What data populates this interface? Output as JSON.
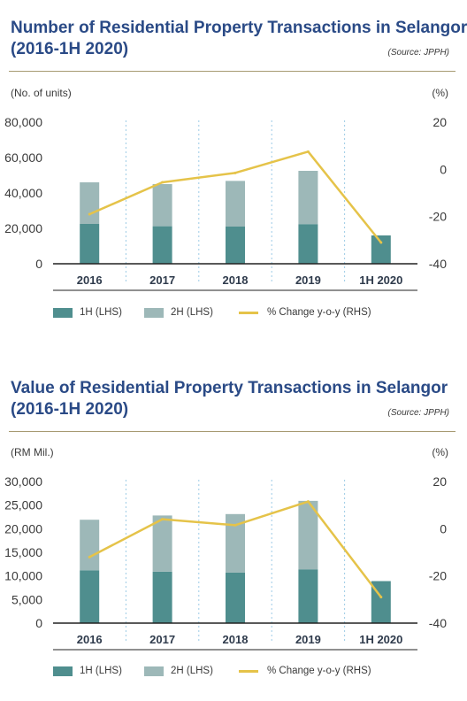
{
  "charts": [
    {
      "title_line1": "Number of Residential Property Transactions in Selangor",
      "title_line2": "(2016-1H 2020)",
      "source": "(Source: JPPH)",
      "left_unit": "(No. of units)",
      "right_unit": "(%)",
      "legend": {
        "h1": "1H (LHS)",
        "h2": "2H (LHS)",
        "yoy": "% Change y-o-y (RHS)"
      },
      "colors": {
        "h1": "#4f8e8e",
        "h2": "#9db8b8",
        "yoy": "#e5c349",
        "divider": "#9ccbe6"
      }
    },
    {
      "title_line1": "Value of Residential Property Transactions in Selangor",
      "title_line2": "(2016-1H 2020)",
      "source": "(Source: JPPH)",
      "left_unit": "(RM Mil.)",
      "right_unit": "(%)",
      "legend": {
        "h1": "1H (LHS)",
        "h2": "2H (LHS)",
        "yoy": "% Change y-o-y (RHS)"
      },
      "colors": {
        "h1": "#4f8e8e",
        "h2": "#9db8b8",
        "yoy": "#e5c349",
        "divider": "#9ccbe6"
      }
    }
  ],
  "chart_data": [
    {
      "type": "bar",
      "title": "Number of Residential Property Transactions in Selangor (2016-1H 2020)",
      "categories": [
        "2016",
        "2017",
        "2018",
        "2019",
        "1H 2020"
      ],
      "stacked": true,
      "series": [
        {
          "name": "1H (LHS)",
          "axis": "left",
          "values": [
            22500,
            21200,
            21000,
            22400,
            16000
          ]
        },
        {
          "name": "2H (LHS)",
          "axis": "left",
          "values": [
            23500,
            23800,
            25800,
            30100,
            null
          ]
        },
        {
          "name": "% Change y-o-y (RHS)",
          "axis": "right",
          "type": "line",
          "values": [
            -19,
            -5.5,
            -1.5,
            7.5,
            -31
          ]
        }
      ],
      "ylabel": "(No. of units)",
      "y2label": "(%)",
      "ylim": [
        0,
        80000
      ],
      "yticks": [
        "0",
        "20,000",
        "40,000",
        "60,000",
        "80,000"
      ],
      "y2lim": [
        -40,
        20
      ],
      "y2ticks": [
        "-40",
        "-20",
        "0",
        "20"
      ],
      "legend_position": "bottom",
      "grid": false
    },
    {
      "type": "bar",
      "title": "Value of Residential Property Transactions in Selangor (2016-1H 2020)",
      "categories": [
        "2016",
        "2017",
        "2018",
        "2019",
        "1H 2020"
      ],
      "stacked": true,
      "series": [
        {
          "name": "1H (LHS)",
          "axis": "left",
          "values": [
            11200,
            10900,
            10700,
            11400,
            8900
          ]
        },
        {
          "name": "2H (LHS)",
          "axis": "left",
          "values": [
            10700,
            11900,
            12400,
            14500,
            null
          ]
        },
        {
          "name": "% Change y-o-y (RHS)",
          "axis": "right",
          "type": "line",
          "values": [
            -12,
            4,
            1.5,
            11.5,
            -29
          ]
        }
      ],
      "ylabel": "(RM Mil.)",
      "y2label": "(%)",
      "ylim": [
        0,
        30000
      ],
      "yticks": [
        "0",
        "5,000",
        "10,000",
        "15,000",
        "20,000",
        "25,000",
        "30,000"
      ],
      "y2lim": [
        -40,
        20
      ],
      "y2ticks": [
        "-40",
        "-20",
        "0",
        "20"
      ],
      "legend_position": "bottom",
      "grid": false
    }
  ]
}
